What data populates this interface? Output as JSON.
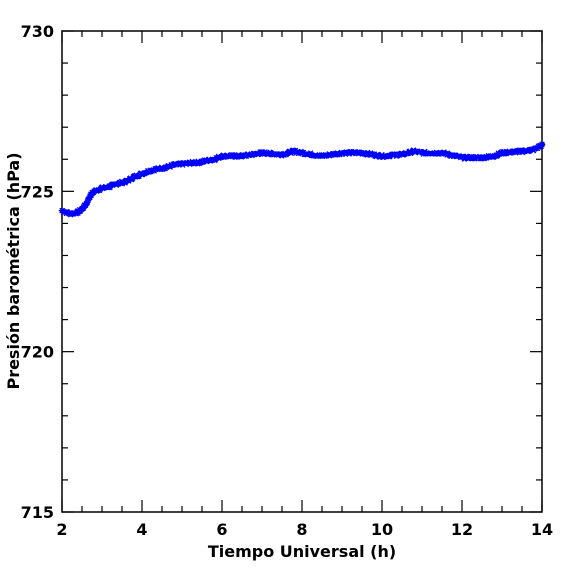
{
  "chart_data": {
    "type": "scatter",
    "xlabel": "Tiempo Universal (h)",
    "ylabel": "Presión barométrica (hPa)",
    "xlim": [
      2,
      14
    ],
    "ylim": [
      715,
      730
    ],
    "x_ticks": [
      "2",
      "4",
      "6",
      "8",
      "10",
      "12",
      "14"
    ],
    "y_ticks": [
      "715",
      "720",
      "725",
      "730"
    ],
    "marker": "asterisk",
    "marker_color": "#0000ff",
    "series": [
      {
        "x": [
          2.0,
          2.2,
          2.4,
          2.5,
          2.6,
          2.7,
          2.8,
          3.0,
          3.2,
          3.4,
          3.6,
          3.8,
          4.0,
          4.2,
          4.4,
          4.6,
          4.8,
          5.0,
          5.2,
          5.4,
          5.6,
          5.8,
          6.0,
          6.5,
          7.0,
          7.5,
          7.8,
          8.0,
          8.5,
          9.0,
          9.5,
          10.0,
          10.5,
          10.8,
          11.0,
          11.5,
          12.0,
          12.5,
          12.8,
          13.0,
          13.5,
          13.8,
          14.0
        ],
        "y": [
          724.4,
          724.3,
          724.35,
          724.45,
          724.6,
          724.85,
          725.0,
          725.1,
          725.15,
          725.25,
          725.3,
          725.45,
          725.55,
          725.65,
          725.7,
          725.75,
          725.82,
          725.85,
          725.88,
          725.9,
          725.95,
          726.0,
          726.1,
          726.1,
          726.2,
          726.15,
          726.25,
          726.2,
          726.1,
          726.2,
          726.2,
          726.1,
          726.15,
          726.25,
          726.2,
          726.2,
          726.05,
          726.05,
          726.1,
          726.2,
          726.25,
          726.3,
          726.45
        ]
      }
    ]
  }
}
